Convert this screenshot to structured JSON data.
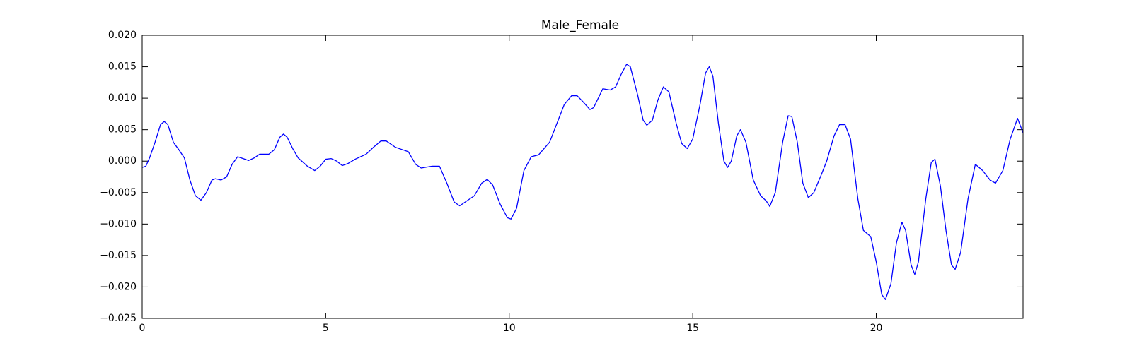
{
  "chart_data": {
    "type": "line",
    "title": "Male_Female",
    "x": [
      0,
      0.1,
      0.2,
      0.35,
      0.5,
      0.6,
      0.7,
      0.85,
      1.0,
      1.15,
      1.3,
      1.45,
      1.6,
      1.75,
      1.9,
      2.0,
      2.15,
      2.3,
      2.45,
      2.6,
      2.75,
      2.9,
      3.05,
      3.2,
      3.45,
      3.6,
      3.75,
      3.85,
      3.95,
      4.1,
      4.25,
      4.5,
      4.7,
      4.85,
      5.0,
      5.15,
      5.3,
      5.45,
      5.6,
      5.8,
      6.1,
      6.3,
      6.5,
      6.65,
      6.9,
      7.1,
      7.25,
      7.45,
      7.6,
      7.9,
      8.1,
      8.3,
      8.5,
      8.65,
      8.8,
      9.05,
      9.25,
      9.4,
      9.55,
      9.75,
      9.95,
      10.05,
      10.2,
      10.4,
      10.6,
      10.8,
      11.1,
      11.3,
      11.5,
      11.7,
      11.85,
      12.0,
      12.2,
      12.3,
      12.55,
      12.75,
      12.9,
      13.05,
      13.2,
      13.3,
      13.5,
      13.65,
      13.75,
      13.9,
      14.05,
      14.2,
      14.35,
      14.55,
      14.7,
      14.85,
      15.0,
      15.2,
      15.35,
      15.45,
      15.55,
      15.7,
      15.85,
      15.95,
      16.05,
      16.2,
      16.3,
      16.45,
      16.65,
      16.85,
      17.0,
      17.1,
      17.25,
      17.45,
      17.6,
      17.7,
      17.85,
      18.0,
      18.15,
      18.3,
      18.5,
      18.65,
      18.85,
      19.0,
      19.15,
      19.3,
      19.5,
      19.65,
      19.85,
      20.0,
      20.15,
      20.25,
      20.4,
      20.55,
      20.7,
      20.8,
      20.95,
      21.05,
      21.15,
      21.35,
      21.5,
      21.6,
      21.75,
      21.9,
      22.05,
      22.15,
      22.3,
      22.5,
      22.7,
      22.9,
      23.1,
      23.25,
      23.45,
      23.65,
      23.85,
      24.0
    ],
    "series": [
      {
        "color": "#0000ff",
        "values": [
          -0.001,
          -0.0008,
          0.0005,
          0.003,
          0.0058,
          0.0063,
          0.0058,
          0.003,
          0.0018,
          0.0005,
          -0.003,
          -0.0055,
          -0.0062,
          -0.005,
          -0.003,
          -0.0028,
          -0.003,
          -0.0025,
          -0.0005,
          0.0007,
          0.0004,
          0.0001,
          0.0005,
          0.0011,
          0.0011,
          0.0018,
          0.0038,
          0.0043,
          0.0038,
          0.002,
          0.0005,
          -0.0008,
          -0.0015,
          -0.0008,
          0.0003,
          0.0004,
          0.0,
          -0.0007,
          -0.0004,
          0.0003,
          0.0011,
          0.0022,
          0.0032,
          0.0032,
          0.0022,
          0.0018,
          0.0015,
          -0.0005,
          -0.0011,
          -0.0008,
          -0.0008,
          -0.0035,
          -0.0065,
          -0.0071,
          -0.0065,
          -0.0055,
          -0.0035,
          -0.0029,
          -0.0038,
          -0.0068,
          -0.009,
          -0.0092,
          -0.0075,
          -0.0015,
          0.0007,
          0.001,
          0.003,
          0.006,
          0.009,
          0.0104,
          0.0104,
          0.0095,
          0.0082,
          0.0085,
          0.0115,
          0.0113,
          0.0118,
          0.0138,
          0.0154,
          0.015,
          0.0105,
          0.0065,
          0.0057,
          0.0065,
          0.0097,
          0.0118,
          0.011,
          0.006,
          0.0028,
          0.002,
          0.0035,
          0.009,
          0.014,
          0.015,
          0.0135,
          0.006,
          0.0,
          -0.001,
          0.0,
          0.004,
          0.005,
          0.003,
          -0.003,
          -0.0055,
          -0.0063,
          -0.0072,
          -0.005,
          0.003,
          0.0072,
          0.0071,
          0.003,
          -0.0035,
          -0.0058,
          -0.005,
          -0.0022,
          0.0,
          0.004,
          0.0058,
          0.0058,
          0.0035,
          -0.006,
          -0.011,
          -0.012,
          -0.016,
          -0.0212,
          -0.022,
          -0.0195,
          -0.013,
          -0.0097,
          -0.011,
          -0.0165,
          -0.018,
          -0.016,
          -0.006,
          -0.0002,
          0.0003,
          -0.004,
          -0.011,
          -0.0165,
          -0.0172,
          -0.0145,
          -0.006,
          -0.0005,
          -0.0015,
          -0.003,
          -0.0035,
          -0.0015,
          0.0035,
          0.0068,
          0.0045
        ]
      }
    ],
    "xlim": [
      0,
      24
    ],
    "xticks": [
      0,
      5,
      10,
      15,
      20
    ],
    "ylim": [
      -0.025,
      0.02
    ],
    "yticks": [
      {
        "value": -0.025,
        "label": "−0.025"
      },
      {
        "value": -0.02,
        "label": "−0.020"
      },
      {
        "value": -0.015,
        "label": "−0.015"
      },
      {
        "value": -0.01,
        "label": "−0.010"
      },
      {
        "value": -0.005,
        "label": "−0.005"
      },
      {
        "value": 0,
        "label": "0.000"
      },
      {
        "value": 0.005,
        "label": "0.005"
      },
      {
        "value": 0.01,
        "label": "0.010"
      },
      {
        "value": 0.015,
        "label": "0.015"
      },
      {
        "value": 0.02,
        "label": "0.020"
      }
    ],
    "grid": false
  }
}
